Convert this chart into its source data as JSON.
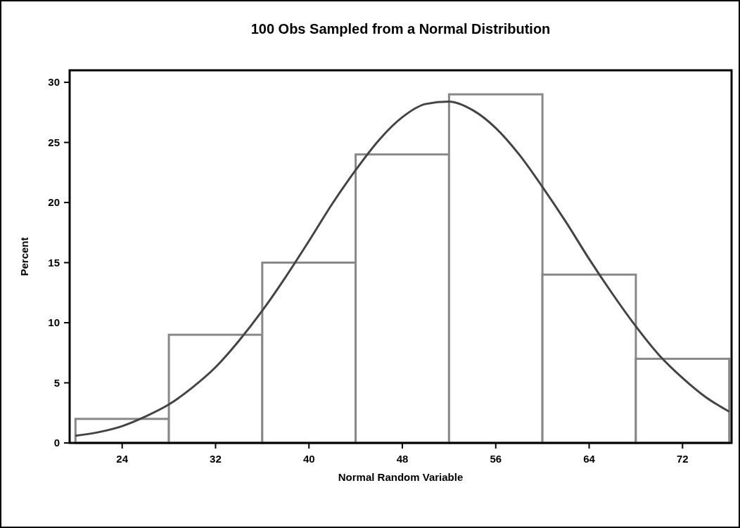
{
  "chart_data": {
    "type": "histogram",
    "title": "100 Obs Sampled from a Normal Distribution",
    "xlabel": "Normal Random Variable",
    "ylabel": "Percent",
    "series": [
      {
        "bins": [
          20,
          28,
          36,
          44,
          52,
          60,
          68,
          76
        ],
        "values": [
          2,
          9,
          15,
          24,
          29,
          14,
          7
        ],
        "color": "#888888"
      },
      {
        "type": "line",
        "x": [
          20,
          22,
          24,
          26,
          28,
          30,
          32,
          34,
          36,
          38,
          40,
          42,
          44,
          46,
          48,
          50,
          52,
          54,
          56,
          58,
          60,
          62,
          64,
          66,
          68,
          70,
          72,
          74,
          76
        ],
        "values": [
          0.6,
          0.9,
          1.4,
          2.2,
          3.2,
          4.6,
          6.3,
          8.5,
          11.0,
          13.8,
          16.8,
          19.9,
          22.7,
          25.2,
          27.1,
          28.2,
          28.4,
          27.7,
          26.2,
          24.0,
          21.3,
          18.4,
          15.3,
          12.4,
          9.7,
          7.3,
          5.4,
          3.8,
          2.6
        ],
        "color": "#444444"
      }
    ],
    "xlim": [
      19.5,
      76.2
    ],
    "ylim": [
      0,
      31
    ],
    "xticks": [
      24,
      32,
      40,
      48,
      56,
      64,
      72
    ],
    "yticks": [
      0,
      5,
      10,
      15,
      20,
      25,
      30
    ],
    "grid": false,
    "marker": "none",
    "line_style": "solid"
  }
}
